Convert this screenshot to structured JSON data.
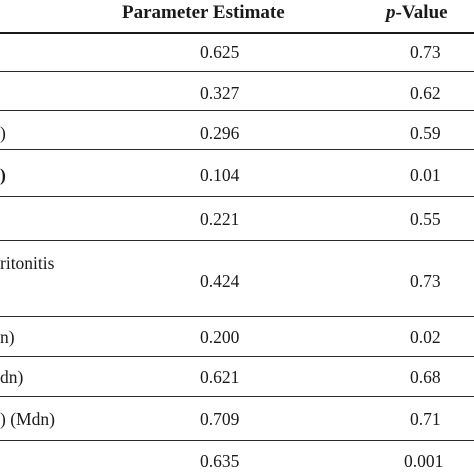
{
  "header": {
    "estimate": "Parameter Estimate",
    "pvalue_p": "p",
    "pvalue_rest": "-Value"
  },
  "rows": [
    {
      "label": "",
      "estimate": "0.625",
      "p": "0.73"
    },
    {
      "label": "",
      "estimate": "0.327",
      "p": "0.62"
    },
    {
      "label": ")",
      "estimate": "0.296",
      "p": "0.59"
    },
    {
      "label": ")",
      "estimate": "0.104",
      "p": "0.01"
    },
    {
      "label": "",
      "estimate": "0.221",
      "p": "0.55"
    },
    {
      "label": "ritonitis",
      "estimate": "0.424",
      "p": "0.73"
    },
    {
      "label": "n)",
      "estimate": "0.200",
      "p": "0.02"
    },
    {
      "label": "dn)",
      "estimate": "0.621",
      "p": "0.68"
    },
    {
      "label": ") (Mdn)",
      "estimate": "0.709",
      "p": "0.71"
    },
    {
      "label": "",
      "estimate": "0.635",
      "p": "0.001"
    }
  ]
}
